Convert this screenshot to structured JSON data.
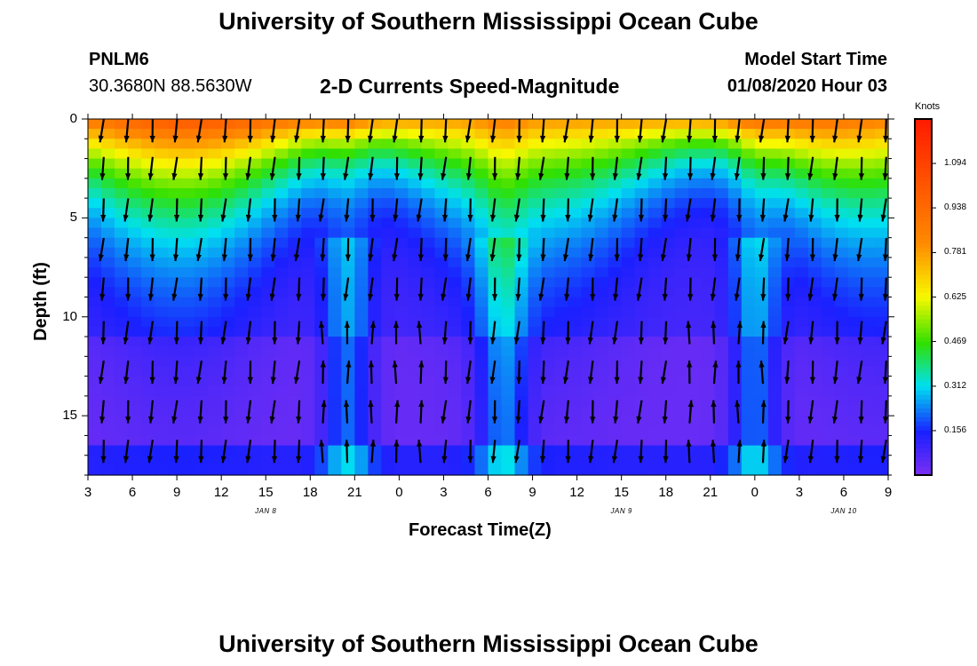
{
  "header": {
    "title_top": "University of Southern Mississippi Ocean Cube",
    "station_id": "PNLM6",
    "station_coords": "30.3680N 88.5630W",
    "plot_title": "2-D Currents Speed-Magnitude",
    "model_start_label": "Model Start Time",
    "model_start_value": "01/08/2020 Hour 03",
    "title_bottom": "University of Southern Mississippi Ocean Cube"
  },
  "chart_data": {
    "type": "heatmap",
    "title": "2-D Currents Speed-Magnitude",
    "xlabel": "Forecast Time(Z)",
    "ylabel": "Depth (ft)",
    "x_tick_labels": [
      "3",
      "6",
      "9",
      "12",
      "15",
      "18",
      "21",
      "0",
      "3",
      "6",
      "9",
      "12",
      "15",
      "18",
      "21",
      "0",
      "3",
      "6",
      "9"
    ],
    "x_day_labels": [
      "JAN 8",
      "JAN 9",
      "JAN 10"
    ],
    "y_ticks": [
      0,
      5,
      10,
      15
    ],
    "ylim": [
      18,
      0
    ],
    "colorbar": {
      "unit": "Knots",
      "ticks": [
        0.156,
        0.312,
        0.469,
        0.625,
        0.781,
        0.938,
        1.094
      ],
      "range": [
        0,
        1.25
      ]
    },
    "colors": {
      "violet": "#7b2ff2",
      "blue": "#1a20ff",
      "cyan": "#00e0f0",
      "green": "#30e000",
      "yellow": "#f8f800",
      "orange": "#ff8a00",
      "red": "#ff1a00"
    }
  }
}
